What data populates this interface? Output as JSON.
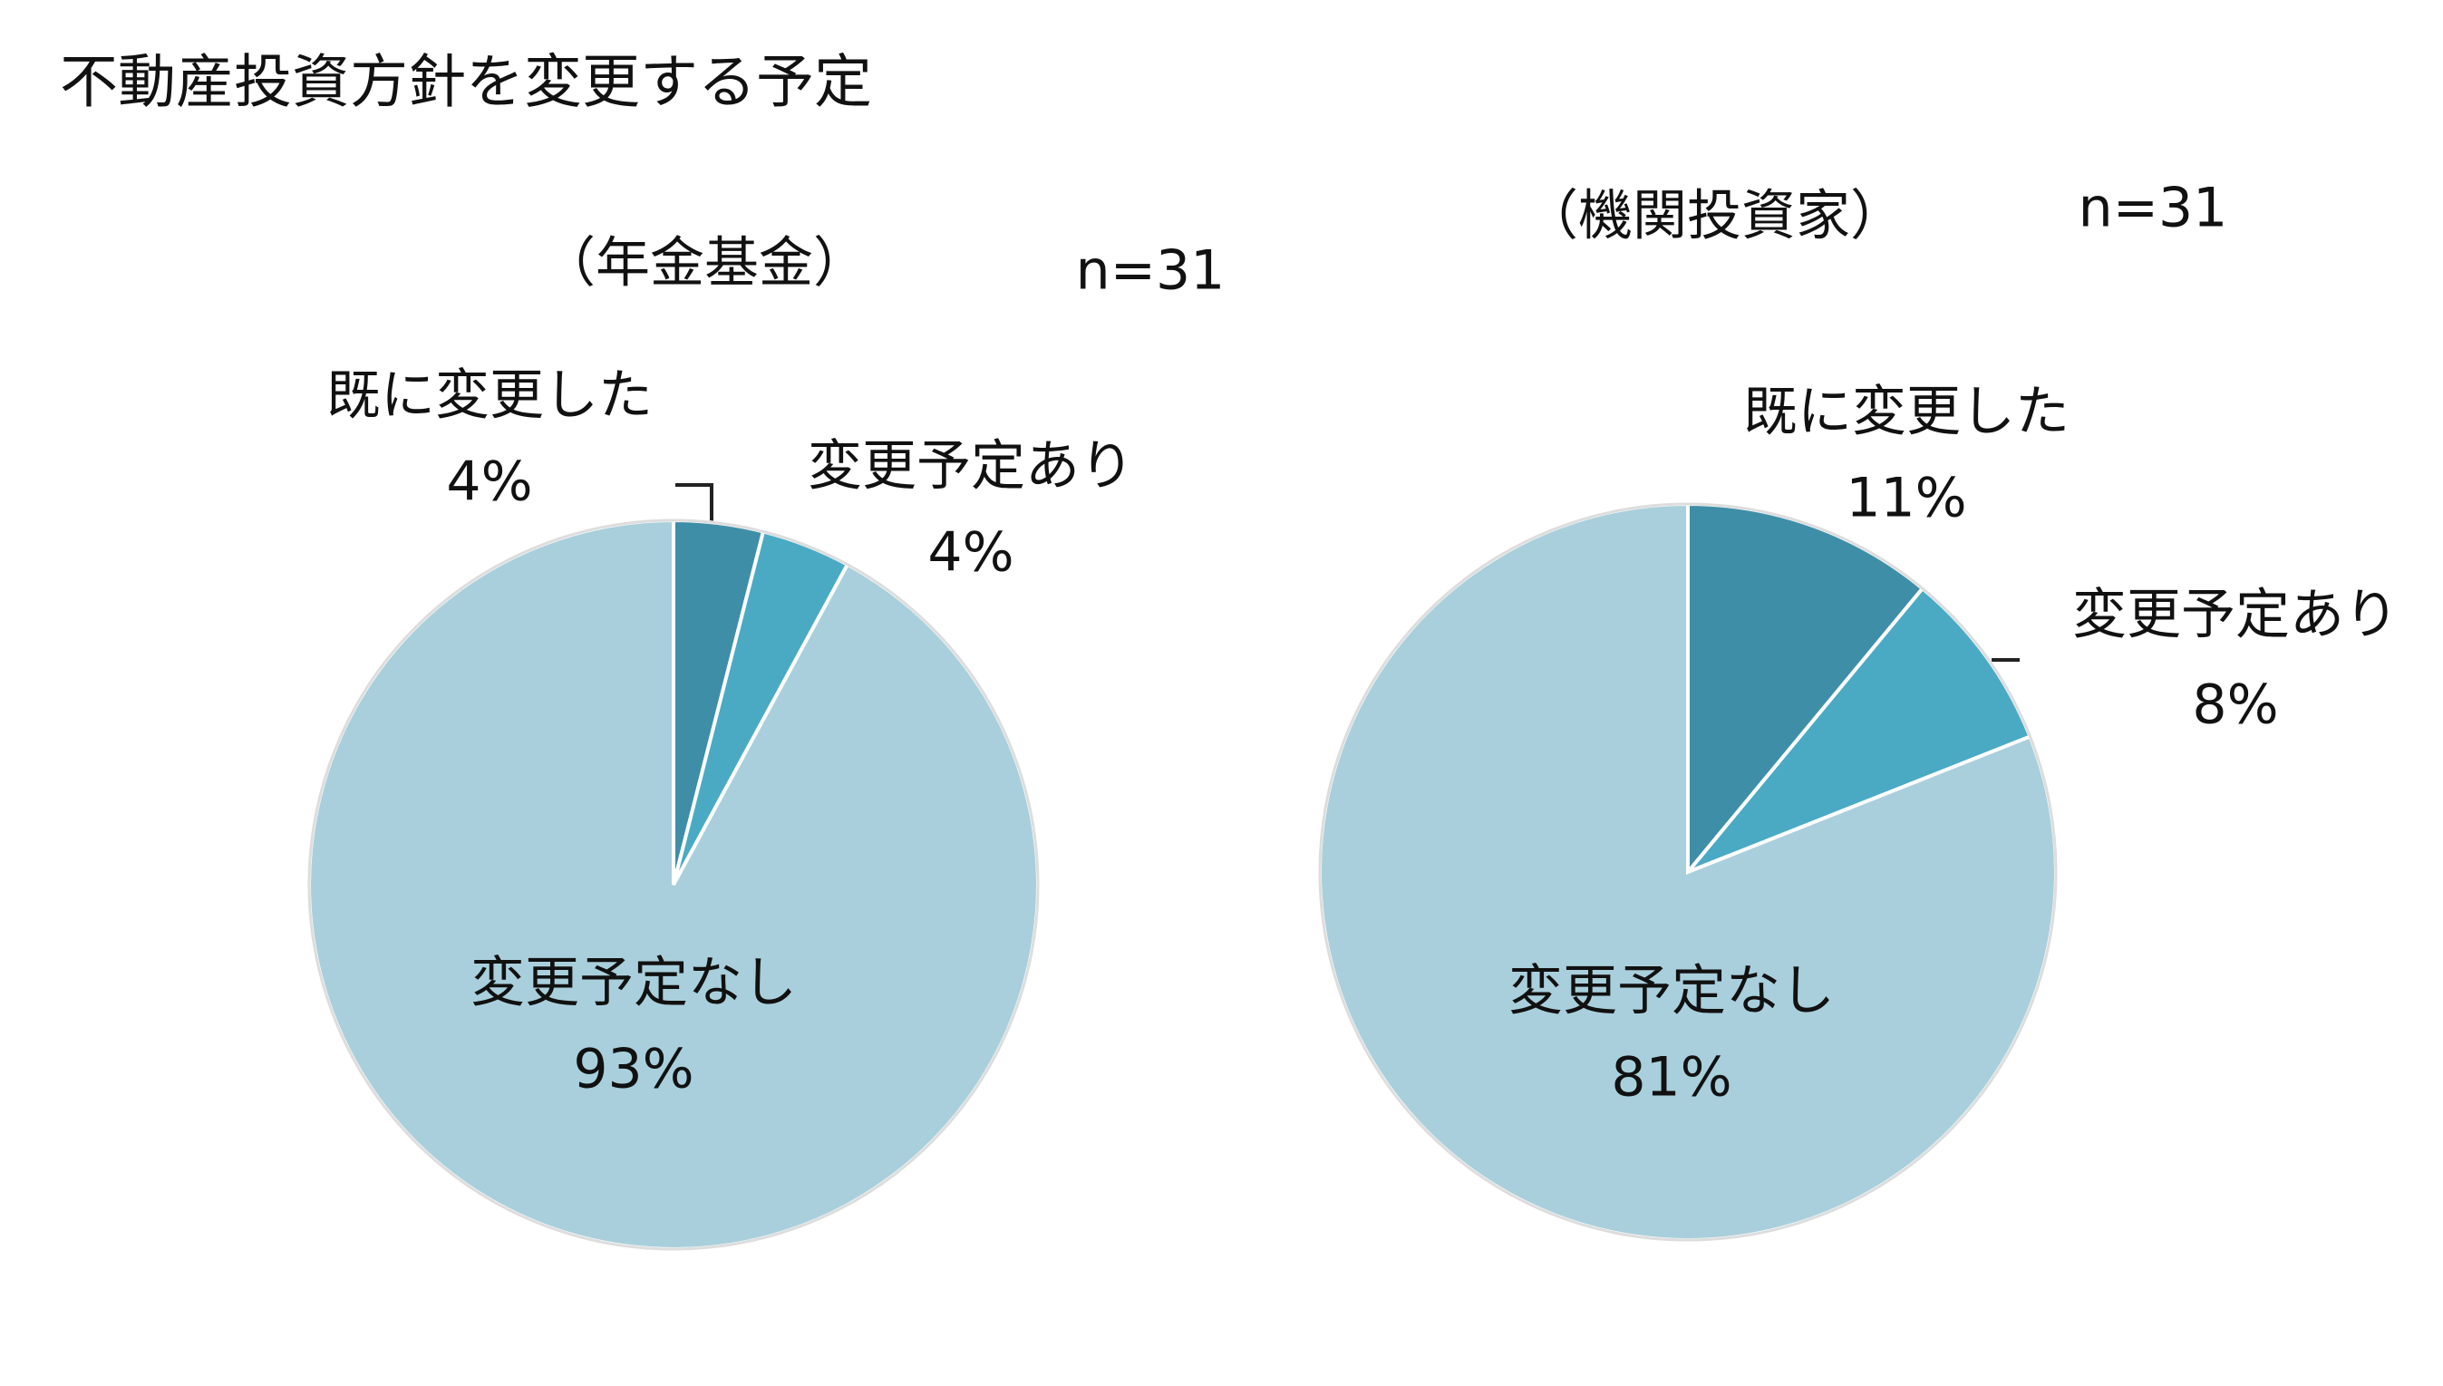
{
  "title": "不動産投資方針を変更する予定",
  "chart_data": [
    {
      "type": "pie",
      "title": "（年金基金）",
      "subtitle": "n=31",
      "categories": [
        "既に変更した",
        "変更予定あり",
        "変更予定なし"
      ],
      "values": [
        4,
        4,
        93
      ],
      "value_labels": [
        "4%",
        "4%",
        "93%"
      ],
      "colors": [
        "#3f8ea7",
        "#4aaac4",
        "#a9cfdc"
      ]
    },
    {
      "type": "pie",
      "title": "（機関投資家）",
      "subtitle": "n=31",
      "categories": [
        "既に変更した",
        "変更予定あり",
        "変更予定なし"
      ],
      "values": [
        11,
        8,
        81
      ],
      "value_labels": [
        "11%",
        "8%",
        "81%"
      ],
      "colors": [
        "#3f8ea7",
        "#4aaac4",
        "#a9cfdc"
      ]
    }
  ]
}
